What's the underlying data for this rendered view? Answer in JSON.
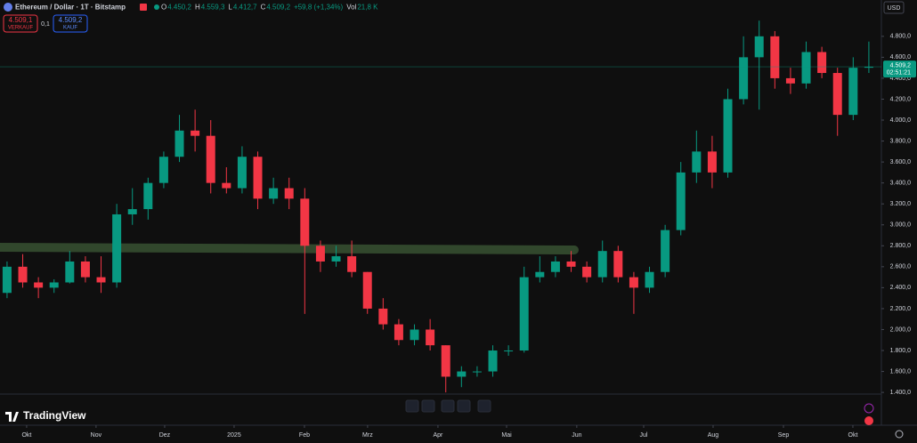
{
  "chart_data": {
    "type": "candlestick",
    "title": "Ethereum / Dollar · 1T · Bitstamp",
    "ohlc_labels": [
      {
        "key": "O",
        "value": "4.450,2"
      },
      {
        "key": "H",
        "value": "4.559,3"
      },
      {
        "key": "L",
        "value": "4.412,7"
      },
      {
        "key": "C",
        "value": "4.509,2"
      }
    ],
    "change": "+59,8 (+1,34%)",
    "volume_key": "Vol",
    "volume": "21,8 K",
    "sell_price": "4.509,1",
    "sell_label": "VERKAUF",
    "spread": "0,1",
    "buy_price": "4.509,2",
    "buy_label": "KAUF",
    "currency": "USD",
    "last_price": {
      "value": 4509.2,
      "label": "4.509,2"
    },
    "countdown": "02:51:21",
    "brand": "TradingView",
    "up_color": "#089981",
    "down_color": "#f23645",
    "x": [
      0,
      1,
      2,
      3,
      4,
      5,
      6,
      7,
      8,
      9,
      10,
      11,
      12,
      13,
      14,
      15,
      16,
      17,
      18,
      19,
      20,
      21,
      22,
      23,
      24,
      25,
      26,
      27,
      28,
      29,
      30,
      31,
      32,
      33,
      34,
      35,
      36,
      37,
      38,
      39,
      40,
      41,
      42,
      43,
      44,
      45,
      46,
      47,
      48,
      49,
      50,
      51,
      52,
      53,
      54,
      55
    ],
    "open": [
      2350,
      2600,
      2450,
      2400,
      2450,
      2650,
      2500,
      2450,
      3100,
      3150,
      3400,
      3650,
      3900,
      3850,
      3400,
      3350,
      3650,
      3250,
      3350,
      3250,
      2800,
      2650,
      2700,
      2550,
      2200,
      2050,
      1900,
      2000,
      1850,
      1550,
      1600,
      1600,
      1800,
      1800,
      2500,
      2550,
      2650,
      2600,
      2500,
      2750,
      2500,
      2400,
      2550,
      2950,
      3500,
      3700,
      3500,
      4200,
      4600,
      4800,
      4400,
      4350,
      4650,
      4450,
      4050,
      4500
    ],
    "high": [
      2650,
      2720,
      2500,
      2480,
      2750,
      2700,
      2700,
      3200,
      3350,
      3450,
      3700,
      4050,
      4100,
      4000,
      3550,
      3750,
      3700,
      3450,
      3450,
      3350,
      2850,
      2800,
      2850,
      2550,
      2300,
      2100,
      2050,
      2100,
      1850,
      1650,
      1650,
      1850,
      1850,
      2600,
      2700,
      2700,
      2750,
      2650,
      2850,
      2800,
      2550,
      2600,
      3000,
      3600,
      3900,
      3850,
      4300,
      4800,
      4950,
      4850,
      4500,
      4750,
      4700,
      4500,
      4600,
      4750
    ],
    "low": [
      2300,
      2400,
      2300,
      2350,
      2440,
      2450,
      2350,
      2400,
      3000,
      3050,
      3350,
      3600,
      3700,
      3300,
      3300,
      3300,
      3150,
      3200,
      3150,
      2150,
      2550,
      2600,
      2500,
      2150,
      2000,
      1850,
      1850,
      1800,
      1400,
      1450,
      1550,
      1550,
      1750,
      1780,
      2450,
      2500,
      2550,
      2450,
      2450,
      2450,
      2150,
      2350,
      2500,
      2900,
      3400,
      3350,
      3450,
      4150,
      4100,
      4300,
      4250,
      4300,
      4400,
      3850,
      4000,
      4450
    ],
    "close": [
      2600,
      2450,
      2400,
      2450,
      2650,
      2500,
      2450,
      3100,
      3150,
      3400,
      3650,
      3900,
      3850,
      3400,
      3350,
      3650,
      3250,
      3350,
      3250,
      2800,
      2650,
      2700,
      2550,
      2200,
      2050,
      1900,
      2000,
      1850,
      1550,
      1600,
      1600,
      1800,
      1800,
      2500,
      2550,
      2650,
      2600,
      2500,
      2750,
      2500,
      2400,
      2550,
      2950,
      3500,
      3700,
      3500,
      4200,
      4600,
      4800,
      4400,
      4350,
      4650,
      4450,
      4050,
      4500,
      4509.2
    ],
    "xlim": [
      -0.45,
      55.8
    ],
    "xticks": [
      {
        "value": 1.25,
        "label": "Okt"
      },
      {
        "value": 5.68,
        "label": "Nov"
      },
      {
        "value": 10.06,
        "label": "Dez"
      },
      {
        "value": 14.49,
        "label": "2025"
      },
      {
        "value": 18.98,
        "label": "Feb"
      },
      {
        "value": 23.01,
        "label": "Mrz"
      },
      {
        "value": 27.5,
        "label": "Apr"
      },
      {
        "value": 31.88,
        "label": "Mai"
      },
      {
        "value": 36.36,
        "label": "Jun"
      },
      {
        "value": 40.63,
        "label": "Jul"
      },
      {
        "value": 45.06,
        "label": "Aug"
      },
      {
        "value": 49.55,
        "label": "Sep"
      },
      {
        "value": 53.98,
        "label": "Okt"
      }
    ],
    "ylim": [
      1350,
      4960
    ],
    "yticks": [
      {
        "value": 1400,
        "label": "1.400,0"
      },
      {
        "value": 1600,
        "label": "1.600,0"
      },
      {
        "value": 1800,
        "label": "1.800,0"
      },
      {
        "value": 2000,
        "label": "2.000,0"
      },
      {
        "value": 2200,
        "label": "2.200,0"
      },
      {
        "value": 2400,
        "label": "2.400,0"
      },
      {
        "value": 2600,
        "label": "2.600,0"
      },
      {
        "value": 2800,
        "label": "2.800,0"
      },
      {
        "value": 3000,
        "label": "3.000,0"
      },
      {
        "value": 3200,
        "label": "3.200,0"
      },
      {
        "value": 3400,
        "label": "3.400,0"
      },
      {
        "value": 3600,
        "label": "3.600,0"
      },
      {
        "value": 3800,
        "label": "3.800,0"
      },
      {
        "value": 4000,
        "label": "4.000,0"
      },
      {
        "value": 4200,
        "label": "4.200,0"
      },
      {
        "value": 4400,
        "label": "4.400,0"
      },
      {
        "value": 4600,
        "label": "4.600,0"
      },
      {
        "value": 4800,
        "label": "4.800,0"
      }
    ],
    "grid": false
  }
}
